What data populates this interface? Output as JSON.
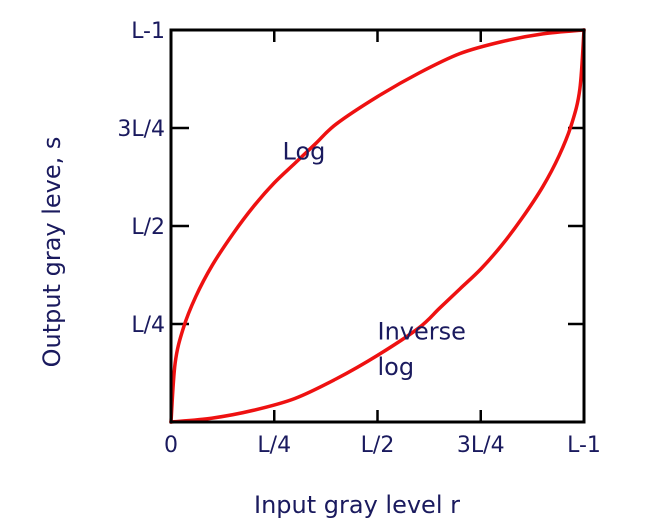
{
  "chart_data": {
    "type": "line",
    "title": "",
    "xlabel": "Input gray level r",
    "ylabel": "Output gray leve, s",
    "xlim": [
      0,
      1
    ],
    "ylim": [
      0,
      1
    ],
    "x_ticks": [
      {
        "value": 0,
        "label": "0"
      },
      {
        "value": 0.25,
        "label": "L/4"
      },
      {
        "value": 0.5,
        "label": "L/2"
      },
      {
        "value": 0.75,
        "label": "3L/4"
      },
      {
        "value": 1,
        "label": "L-1"
      }
    ],
    "y_ticks": [
      {
        "value": 0.25,
        "label": "L/4"
      },
      {
        "value": 0.5,
        "label": "L/2"
      },
      {
        "value": 0.75,
        "label": "3L/4"
      },
      {
        "value": 1,
        "label": "L-1"
      }
    ],
    "series": [
      {
        "name": "Log",
        "color": "#ee1111",
        "points": [
          [
            0,
            0
          ],
          [
            0.01,
            0.15
          ],
          [
            0.03,
            0.24
          ],
          [
            0.06,
            0.32
          ],
          [
            0.1,
            0.4
          ],
          [
            0.15,
            0.48
          ],
          [
            0.2,
            0.55
          ],
          [
            0.25,
            0.61
          ],
          [
            0.3,
            0.66
          ],
          [
            0.35,
            0.71
          ],
          [
            0.4,
            0.76
          ],
          [
            0.5,
            0.83
          ],
          [
            0.6,
            0.89
          ],
          [
            0.7,
            0.94
          ],
          [
            0.8,
            0.97
          ],
          [
            0.9,
            0.99
          ],
          [
            1,
            1
          ]
        ]
      },
      {
        "name": "Inverse log",
        "color": "#ee1111",
        "points": [
          [
            0,
            0
          ],
          [
            0.1,
            0.01
          ],
          [
            0.2,
            0.03
          ],
          [
            0.3,
            0.06
          ],
          [
            0.4,
            0.11
          ],
          [
            0.5,
            0.17
          ],
          [
            0.6,
            0.24
          ],
          [
            0.65,
            0.29
          ],
          [
            0.7,
            0.34
          ],
          [
            0.75,
            0.39
          ],
          [
            0.8,
            0.45
          ],
          [
            0.85,
            0.52
          ],
          [
            0.9,
            0.6
          ],
          [
            0.94,
            0.68
          ],
          [
            0.97,
            0.76
          ],
          [
            0.99,
            0.85
          ],
          [
            1,
            1
          ]
        ]
      }
    ],
    "annotations": [
      {
        "text": "Log",
        "x": 0.27,
        "y": 0.67
      },
      {
        "text": "Inverse",
        "x": 0.5,
        "y": 0.21
      },
      {
        "text": "log",
        "x": 0.5,
        "y": 0.12
      }
    ],
    "grid": false,
    "legend": "none",
    "axis_color": "#000000",
    "text_color": "#1a1a5e"
  }
}
